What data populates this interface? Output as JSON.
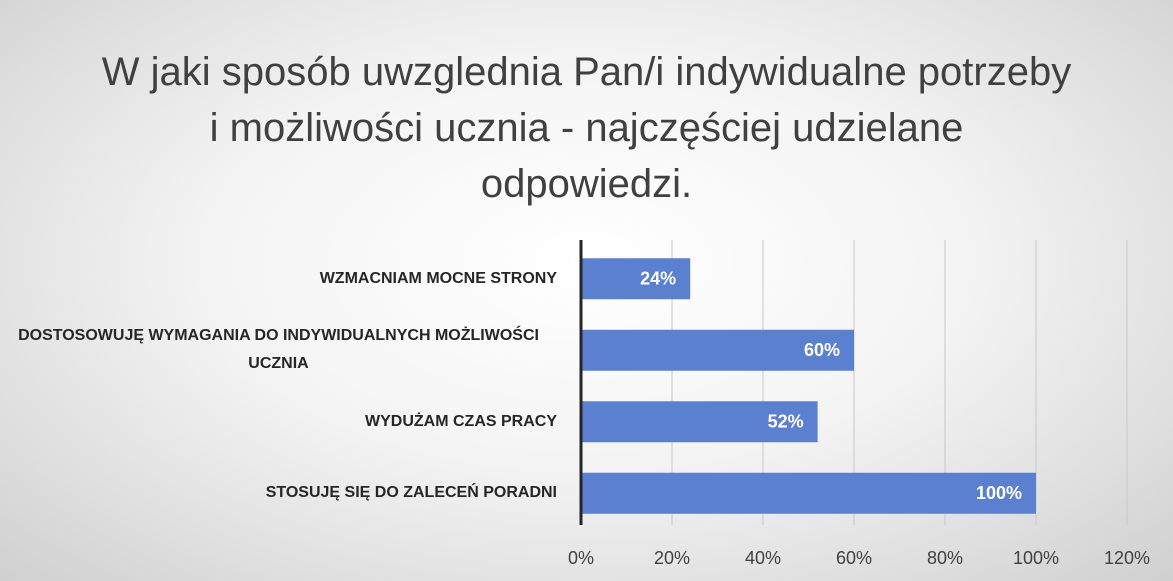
{
  "chart_data": {
    "type": "bar",
    "orientation": "horizontal",
    "title": "W jaki sposób uwzglednia Pan/i indywidualne potrzeby i możliwości ucznia - najczęściej udzielane odpowiedzi.",
    "categories": [
      "WZMACNIAM MOCNE STRONY",
      "DOSTOSOWUJĘ WYMAGANIA DO INDYWIDUALNYCH MOŻLIWOŚCI UCZNIA",
      "WYDUŻAM CZAS PRACY",
      "STOSUJĘ SIĘ DO ZALECEŃ PORADNI"
    ],
    "values": [
      24,
      60,
      52,
      100
    ],
    "value_labels": [
      "24%",
      "60%",
      "52%",
      "100%"
    ],
    "color": "#5b80cf",
    "xlim": [
      0,
      120
    ],
    "xticks": [
      {
        "value": 0,
        "label": "0%"
      },
      {
        "value": 20,
        "label": "20%"
      },
      {
        "value": 40,
        "label": "40%"
      },
      {
        "value": 60,
        "label": "60%"
      },
      {
        "value": 80,
        "label": "80%"
      },
      {
        "value": 100,
        "label": "100%"
      },
      {
        "value": 120,
        "label": "120%"
      }
    ],
    "grid": true
  }
}
